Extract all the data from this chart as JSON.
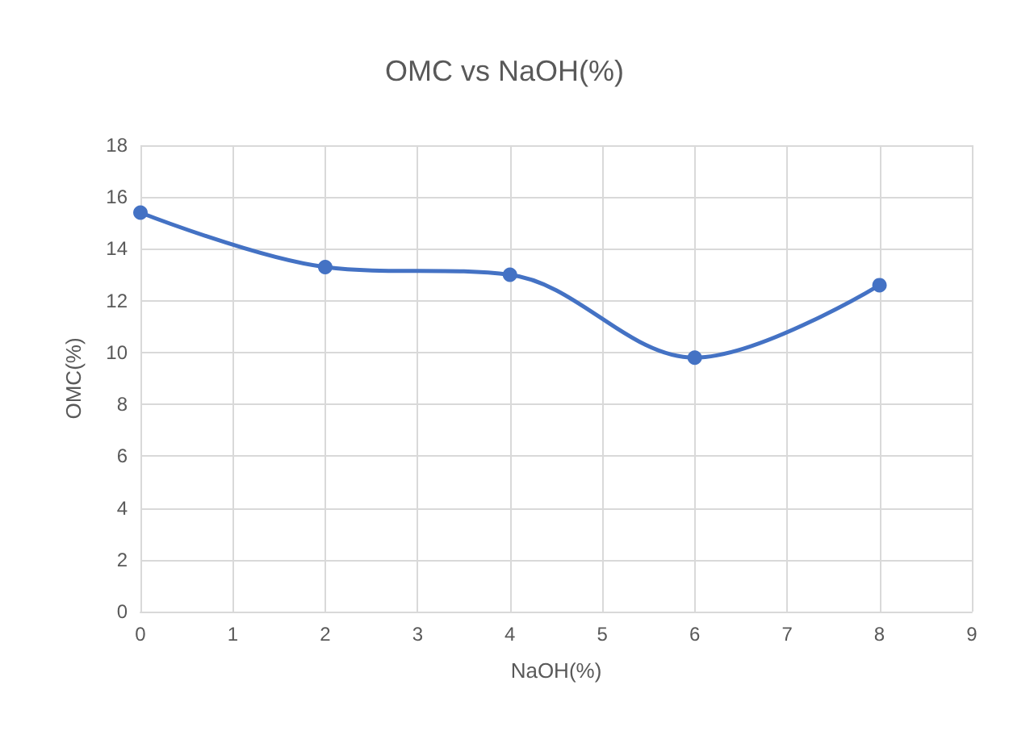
{
  "chart_data": {
    "type": "line",
    "title": "OMC vs NaOH(%)",
    "xlabel": "NaOH(%)",
    "ylabel": "OMC(%)",
    "x": [
      0,
      2,
      4,
      6,
      8
    ],
    "series": [
      {
        "color": "#4472c4",
        "values": [
          15.4,
          13.3,
          13.0,
          9.8,
          12.6
        ]
      }
    ],
    "xlim": [
      0,
      9
    ],
    "xticks": [
      0,
      1,
      2,
      3,
      4,
      5,
      6,
      7,
      8,
      9
    ],
    "ylim": [
      0,
      18
    ],
    "yticks": [
      0,
      2,
      4,
      6,
      8,
      10,
      12,
      14,
      16,
      18
    ],
    "grid": true,
    "marker": "circle",
    "line_style": "solid"
  }
}
